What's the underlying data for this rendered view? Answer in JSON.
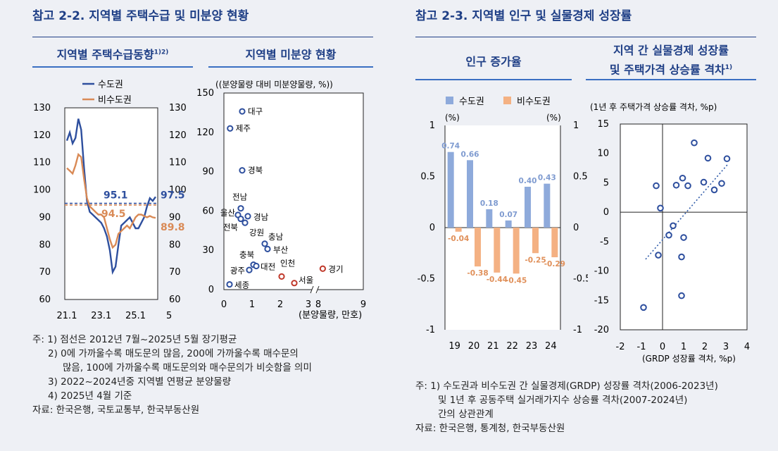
{
  "left": {
    "section_title": "참고 2-2. 지역별 주택수급 및 미분양 현황",
    "supply_chart_title": "지역별 주택수급동향",
    "supply_chart_title_sup": "1)2)",
    "unsold_chart_title": "지역별 미분양 현황",
    "notes": [
      "주: 1) 점선은 2012년 7월~2025년 5월 장기평균",
      "2) 0에 가까울수록 매도문의 많음, 200에 가까울수록 매수문의",
      "많음, 100에 가까울수록 매도문의와 매수문의가 비슷함을 의미",
      "3) 2022~2024년중 지역별 연평균 분양물량",
      "4) 2025년 4월 기준"
    ],
    "source": "자료: 한국은행, 국토교통부, 한국부동산원"
  },
  "right": {
    "section_title": "참고 2-3. 지역별 인구 및 실물경제 성장률",
    "pop_chart_title": "인구 증가율",
    "gap_chart_title_line1": "지역 간 실물경제 성장률",
    "gap_chart_title_line2": "및 주택가격 상승률 격차",
    "gap_chart_title_sup": "1)",
    "notes": [
      "주: 1) 수도권과 비수도권 간 실물경제(GRDP) 성장률 격차(2006-2023년)",
      "및 1년 후 공동주택 실거래가지수 상승률 격차(2007-2024년)",
      "간의 상관관계"
    ],
    "source": "자료: 한국은행, 통계청, 한국부동산원"
  },
  "colors": {
    "capital": "#2e4f9e",
    "non_capital": "#d98a56",
    "title_blue": "#1f3f86",
    "bar_blue": "#8eaadb",
    "bar_orange": "#f4b183",
    "red_circle": "#c0392b"
  },
  "chart_data": [
    {
      "type": "line",
      "title": "지역별 주택수급동향",
      "x_ticks": [
        "21.1",
        "23.1",
        "25.1"
      ],
      "x_tail_label": "5",
      "ylim": [
        60,
        130
      ],
      "y_ticks": [
        60,
        70,
        80,
        90,
        100,
        110,
        120,
        130
      ],
      "series": [
        {
          "name": "수도권",
          "values": [
            118,
            121,
            117,
            119,
            126,
            122,
            108,
            96,
            92,
            91,
            90,
            89,
            88,
            86,
            83,
            78,
            70,
            72,
            80,
            87,
            88,
            89,
            90,
            88,
            86,
            86,
            88,
            90,
            94,
            97,
            96,
            97.5
          ],
          "avg": 95.1,
          "last": 97.5
        },
        {
          "name": "비수도권",
          "values": [
            108,
            107,
            106,
            109,
            113,
            112,
            104,
            97,
            94,
            93,
            92,
            91,
            91,
            90,
            86,
            82,
            79,
            80,
            84,
            85,
            86,
            87,
            86,
            88,
            90,
            91,
            91,
            90.5,
            90,
            90.5,
            90,
            89.8
          ],
          "avg": 94.5,
          "last": 89.8
        }
      ],
      "avg_labels": [
        "95.1",
        "94.5"
      ],
      "end_labels": [
        "97.5",
        "89.8"
      ]
    },
    {
      "type": "scatter",
      "title": "지역별 미분양 현황",
      "ylabel": "(분양물량 대비 미분양물량, %)",
      "ylabel_sup1": "3)",
      "ylabel_sup2": "4)",
      "xlabel": "(분양물량, 만호)",
      "x_ticks": [
        "0",
        "1",
        "2",
        "3",
        "8",
        "9"
      ],
      "ylim": [
        0,
        150
      ],
      "y_ticks": [
        0,
        30,
        60,
        90,
        120,
        150
      ],
      "points": [
        {
          "label": "대구",
          "x": 0.65,
          "y": 136,
          "group": "비수도권"
        },
        {
          "label": "제주",
          "x": 0.22,
          "y": 123,
          "group": "비수도권"
        },
        {
          "label": "경북",
          "x": 0.65,
          "y": 91,
          "group": "비수도권"
        },
        {
          "label": "전남",
          "x": 0.6,
          "y": 62,
          "group": "비수도권"
        },
        {
          "label": "울산",
          "x": 0.5,
          "y": 57,
          "group": "비수도권"
        },
        {
          "label": "경남",
          "x": 0.85,
          "y": 56,
          "group": "비수도권"
        },
        {
          "label": "전북",
          "x": 0.6,
          "y": 54,
          "group": "비수도권"
        },
        {
          "label": "강원",
          "x": 0.75,
          "y": 51,
          "group": "비수도권"
        },
        {
          "label": "충남",
          "x": 1.45,
          "y": 35,
          "group": "비수도권"
        },
        {
          "label": "부산",
          "x": 1.55,
          "y": 31,
          "group": "비수도권"
        },
        {
          "label": "충북",
          "x": 1.05,
          "y": 19,
          "group": "비수도권"
        },
        {
          "label": "대전",
          "x": 1.15,
          "y": 18,
          "group": "비수도권"
        },
        {
          "label": "광주",
          "x": 0.9,
          "y": 15,
          "group": "비수도권"
        },
        {
          "label": "세종",
          "x": 0.2,
          "y": 4,
          "group": "비수도권"
        },
        {
          "label": "인천",
          "x": 2.05,
          "y": 10,
          "group": "수도권"
        },
        {
          "label": "서울",
          "x": 2.5,
          "y": 5,
          "group": "수도권"
        },
        {
          "label": "경기",
          "x": 8.1,
          "y": 16,
          "group": "수도권"
        }
      ]
    },
    {
      "type": "bar",
      "title": "인구 증가율",
      "categories": [
        "19",
        "20",
        "21",
        "22",
        "23",
        "24"
      ],
      "ylim": [
        -1,
        1
      ],
      "y_ticks": [
        -1,
        -0.5,
        0,
        0.5,
        1
      ],
      "unit_label": "(%)",
      "series": [
        {
          "name": "수도권",
          "values": [
            0.74,
            0.66,
            0.18,
            0.07,
            0.4,
            0.43
          ]
        },
        {
          "name": "비수도권",
          "values": [
            -0.04,
            -0.38,
            -0.44,
            -0.45,
            -0.25,
            -0.29
          ]
        }
      ]
    },
    {
      "type": "scatter",
      "title": "지역 간 실물경제 성장률 및 주택가격 상승률 격차",
      "ylabel": "(1년 후 주택가격 상승률 격차, %p)",
      "xlabel": "(GRDP 성장률 격차, %p)",
      "xlim": [
        -2,
        4
      ],
      "x_ticks": [
        -2,
        -1,
        0,
        1,
        2,
        3,
        4
      ],
      "ylim": [
        -20,
        15
      ],
      "y_ticks": [
        -20,
        -15,
        -10,
        -5,
        0,
        5,
        10,
        15
      ],
      "points": [
        [
          -0.9,
          -16.2
        ],
        [
          -0.2,
          -7.3
        ],
        [
          0.9,
          -14.2
        ],
        [
          0.9,
          -7.6
        ],
        [
          1.0,
          -4.3
        ],
        [
          0.3,
          -3.9
        ],
        [
          0.5,
          -2.3
        ],
        [
          -0.1,
          0.7
        ],
        [
          -0.3,
          4.5
        ],
        [
          0.65,
          4.6
        ],
        [
          0.95,
          5.8
        ],
        [
          1.2,
          4.5
        ],
        [
          1.5,
          11.8
        ],
        [
          1.95,
          5.1
        ],
        [
          2.15,
          9.2
        ],
        [
          2.45,
          3.8
        ],
        [
          2.8,
          4.9
        ],
        [
          3.05,
          9.1
        ]
      ],
      "trend": [
        [
          -0.8,
          -8.0
        ],
        [
          3.1,
          8.2
        ]
      ]
    }
  ]
}
